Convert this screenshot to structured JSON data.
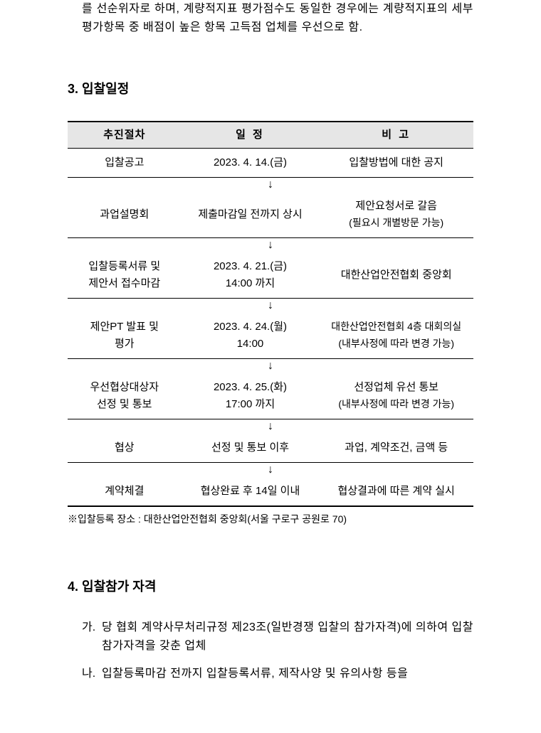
{
  "intro": "를 선순위자로 하며, 계량적지표 평가점수도 동일한 경우에는 계량적지표의 세부평가항목 중 배점이 높은 항목 고득점 업체를 우선으로 함.",
  "section3": {
    "title": "3. 입찰일정",
    "headers": {
      "procedure": "추진절차",
      "date": "일   정",
      "note": "비   고"
    },
    "rows": [
      {
        "procedure": "입찰공고",
        "date": "2023. 4. 14.(금)",
        "note": "입찰방법에 대한 공지"
      },
      {
        "procedure": "과업설명회",
        "date": "제출마감일 전까지 상시",
        "note_line1": "제안요청서로 갈음",
        "note_line2": "(필요시 개별방문 가능)"
      },
      {
        "procedure_line1": "입찰등록서류 및",
        "procedure_line2": "제안서 접수마감",
        "date_line1": "2023. 4. 21.(금)",
        "date_line2": "14:00 까지",
        "note": "대한산업안전협회 중앙회"
      },
      {
        "procedure_line1": "제안PT 발표 및",
        "procedure_line2": "평가",
        "date_line1": "2023. 4. 24.(월)",
        "date_line2": "14:00",
        "note_line1": "대한산업안전협회 4층 대회의실",
        "note_line2": "(내부사정에 따라 변경 가능)"
      },
      {
        "procedure_line1": "우선협상대상자",
        "procedure_line2": "선정 및 통보",
        "date_line1": "2023. 4. 25.(화)",
        "date_line2": "17:00 까지",
        "note_line1": "선정업체 유선 통보",
        "note_line2": "(내부사정에 따라 변경 가능)"
      },
      {
        "procedure": "협상",
        "date": "선정 및 통보 이후",
        "note": "과업, 계약조건, 금액 등"
      },
      {
        "procedure": "계약체결",
        "date": "협상완료 후 14일 이내",
        "note": "협상결과에 따른 계약 실시"
      }
    ],
    "arrow": "↓",
    "footnote": "※입찰등록 장소 : 대한산업안전협회 중앙회(서울 구로구 공원로 70)"
  },
  "section4": {
    "title": "4. 입찰참가 자격",
    "items": [
      {
        "marker": "가.",
        "content": "당 협회 계약사무처리규정 제23조(일반경쟁 입찰의 참가자격)에 의하여 입찰참가자격을 갖춘 업체"
      },
      {
        "marker": "나.",
        "content": "입찰등록마감 전까지 입찰등록서류, 제작사양 및 유의사항 등을"
      }
    ]
  }
}
